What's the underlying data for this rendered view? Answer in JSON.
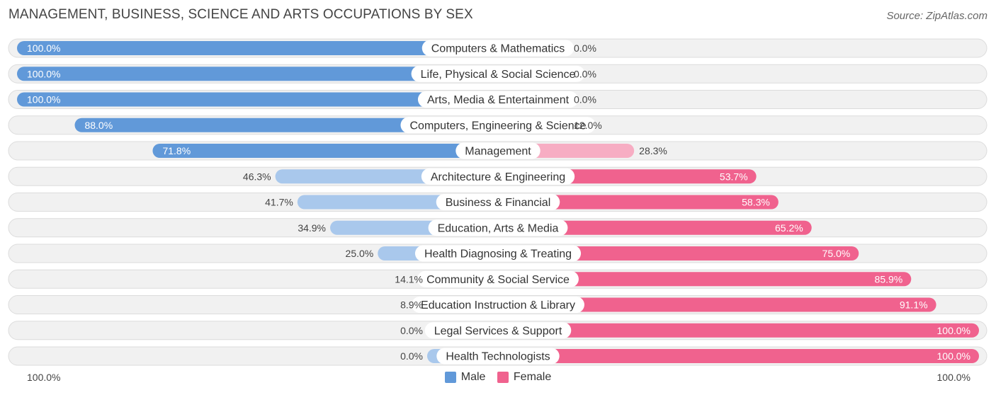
{
  "header": {
    "title": "MANAGEMENT, BUSINESS, SCIENCE AND ARTS OCCUPATIONS BY SEX",
    "source": "Source: ZipAtlas.com"
  },
  "axis": {
    "left_label": "100.0%",
    "right_label": "100.0%"
  },
  "legend": {
    "male_label": "Male",
    "female_label": "Female",
    "position": "bottom-center"
  },
  "colors": {
    "male_strong": "#6199d9",
    "male_light": "#a9c8ec",
    "female_strong": "#f0628e",
    "female_light": "#f7adc3",
    "row_bg": "#f1f1f1",
    "row_border": "#dcdcdc"
  },
  "chart_data": {
    "type": "bar",
    "orientation": "horizontal-diverging",
    "title": "MANAGEMENT, BUSINESS, SCIENCE AND ARTS OCCUPATIONS BY SEX",
    "xlim": [
      -100,
      100
    ],
    "categories": [
      "Computers & Mathematics",
      "Life, Physical & Social Science",
      "Arts, Media & Entertainment",
      "Computers, Engineering & Science",
      "Management",
      "Architecture & Engineering",
      "Business & Financial",
      "Education, Arts & Media",
      "Health Diagnosing & Treating",
      "Community & Social Service",
      "Education Instruction & Library",
      "Legal Services & Support",
      "Health Technologists"
    ],
    "series": [
      {
        "name": "Male",
        "values": [
          100.0,
          100.0,
          100.0,
          88.0,
          71.8,
          46.3,
          41.7,
          34.9,
          25.0,
          14.1,
          8.9,
          0.0,
          0.0
        ],
        "labels": [
          "100.0%",
          "100.0%",
          "100.0%",
          "88.0%",
          "71.8%",
          "46.3%",
          "41.7%",
          "34.9%",
          "25.0%",
          "14.1%",
          "8.9%",
          "0.0%",
          "0.0%"
        ]
      },
      {
        "name": "Female",
        "values": [
          0.0,
          0.0,
          0.0,
          12.0,
          28.3,
          53.7,
          58.3,
          65.2,
          75.0,
          85.9,
          91.1,
          100.0,
          100.0
        ],
        "labels": [
          "0.0%",
          "0.0%",
          "0.0%",
          "12.0%",
          "28.3%",
          "53.7%",
          "58.3%",
          "65.2%",
          "75.0%",
          "85.9%",
          "91.1%",
          "100.0%",
          "100.0%"
        ]
      }
    ]
  }
}
